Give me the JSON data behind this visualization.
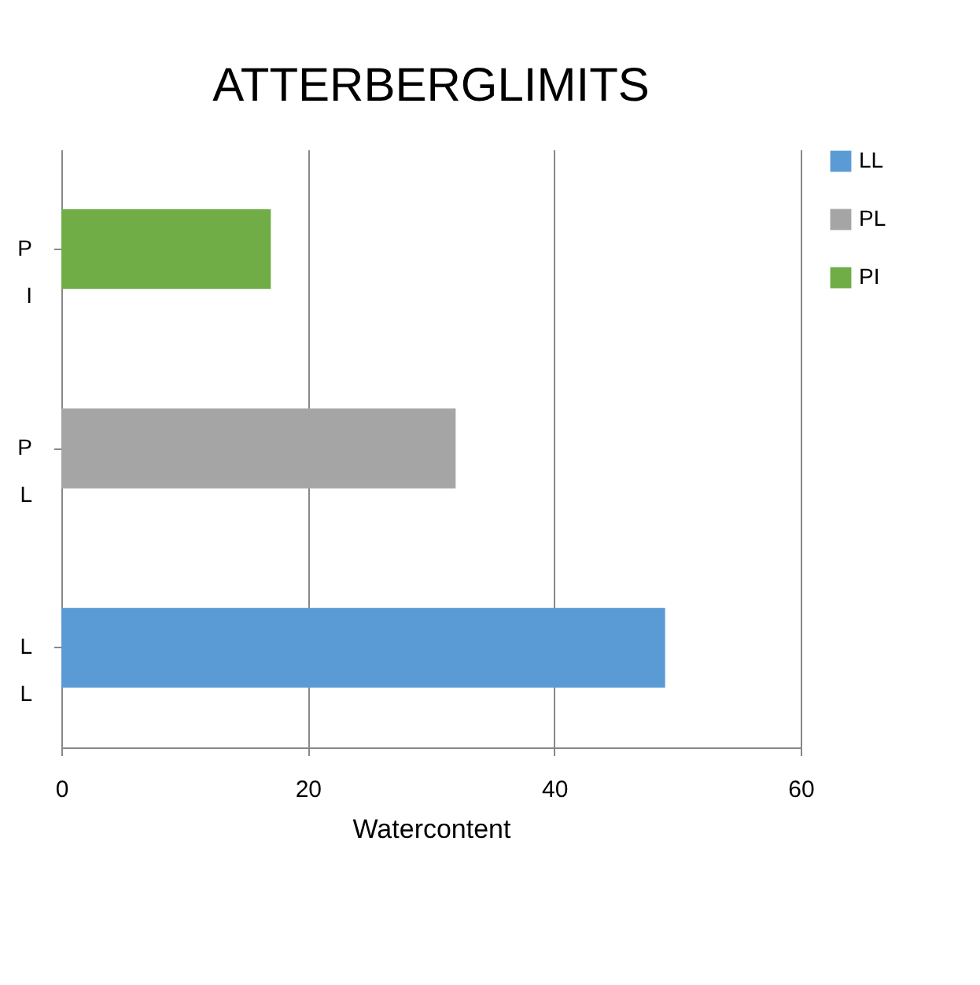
{
  "chart_data": {
    "type": "bar",
    "orientation": "horizontal",
    "title": "ATTERBERGLIMITS",
    "xlabel": "Watercontent",
    "categories": [
      "PI",
      "PL",
      "LL"
    ],
    "series": [
      {
        "name": "LL",
        "color": "#5b9bd5",
        "values": [
          null,
          null,
          49
        ]
      },
      {
        "name": "PL",
        "color": "#a5a5a5",
        "values": [
          null,
          32,
          null
        ]
      },
      {
        "name": "PI",
        "color": "#70ad47",
        "values": [
          17,
          null,
          null
        ]
      }
    ],
    "xlim": [
      0,
      60
    ],
    "xticks": [
      0,
      20,
      40,
      60
    ],
    "grid": "x",
    "legend": "right"
  }
}
